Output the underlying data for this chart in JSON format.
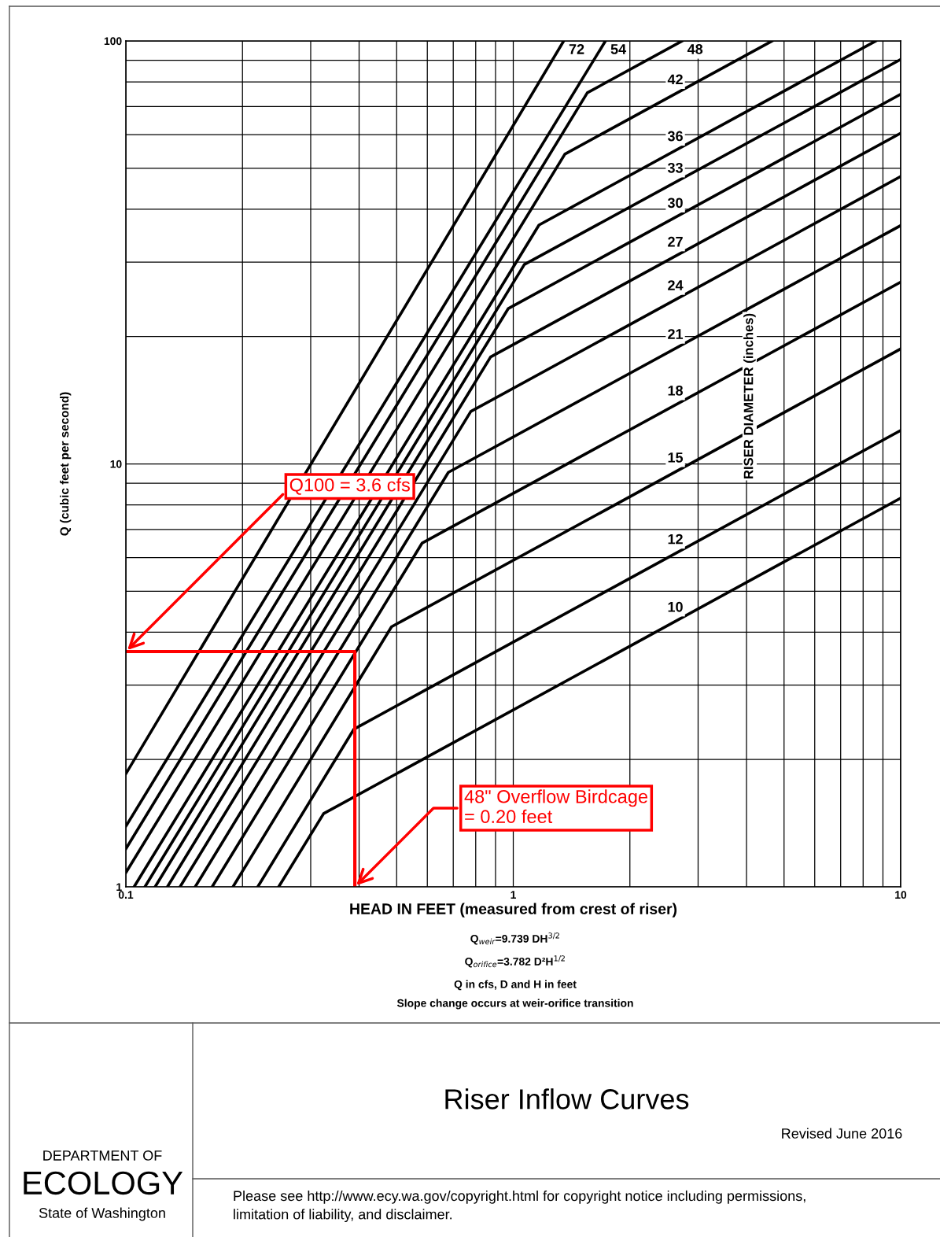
{
  "chart_data": {
    "type": "line",
    "xlabel": "HEAD IN FEET (measured from crest of riser)",
    "ylabel": "Q (cubic feet per second)",
    "legend_title": "RISER DIAMETER (inches)",
    "title": "Riser Inflow Curves",
    "log": "xy",
    "grid": true,
    "legend": false,
    "xlim": [
      0.1,
      10
    ],
    "ylim": [
      1,
      100
    ],
    "xticks": [
      0.1,
      {
        "value": 0.2,
        "label": null
      },
      {
        "value": 0.3,
        "label": null
      },
      {
        "value": 0.4,
        "label": null
      },
      {
        "value": 0.5,
        "label": null
      },
      {
        "value": 0.6,
        "label": null
      },
      {
        "value": 0.7,
        "label": null
      },
      {
        "value": 0.8,
        "label": null
      },
      {
        "value": 0.9,
        "label": null
      },
      1,
      {
        "value": 2,
        "label": null
      },
      {
        "value": 3,
        "label": null
      },
      {
        "value": 4,
        "label": null
      },
      {
        "value": 5,
        "label": null
      },
      {
        "value": 6,
        "label": null
      },
      {
        "value": 7,
        "label": null
      },
      {
        "value": 8,
        "label": null
      },
      {
        "value": 9,
        "label": null
      },
      10
    ],
    "yticks": [
      1,
      {
        "value": 2,
        "label": null
      },
      {
        "value": 3,
        "label": null
      },
      {
        "value": 4,
        "label": null
      },
      {
        "value": 5,
        "label": null
      },
      {
        "value": 6,
        "label": null
      },
      {
        "value": 7,
        "label": null
      },
      {
        "value": 8,
        "label": null
      },
      {
        "value": 9,
        "label": null
      },
      10,
      {
        "value": 20,
        "label": null
      },
      {
        "value": 30,
        "label": null
      },
      {
        "value": 40,
        "label": null
      },
      {
        "value": 50,
        "label": null
      },
      {
        "value": 60,
        "label": null
      },
      {
        "value": 70,
        "label": null
      },
      {
        "value": 80,
        "label": null
      },
      {
        "value": 90,
        "label": null
      },
      100
    ],
    "series": [
      {
        "name": "72",
        "color": "#000000",
        "x": [
          0.1,
          1.35
        ],
        "values": [
          1.85,
          100
        ]
      },
      {
        "name": "54",
        "color": "#000000",
        "x": [
          0.1,
          1.73
        ],
        "values": [
          1.39,
          100
        ]
      },
      {
        "name": "48",
        "color": "#000000",
        "x": [
          0.1,
          1.553,
          2.73
        ],
        "values": [
          1.23,
          75.4,
          100
        ]
      },
      {
        "name": "42",
        "color": "#000000",
        "x": [
          0.1,
          1.359,
          4.66
        ],
        "values": [
          1.08,
          54,
          100
        ]
      },
      {
        "name": "36",
        "color": "#000000",
        "x": [
          0.105,
          1.165,
          8.63
        ],
        "values": [
          1,
          36.7,
          100
        ]
      },
      {
        "name": "33",
        "color": "#000000",
        "x": [
          0.112,
          1.068,
          10
        ],
        "values": [
          1,
          29.6,
          90.4
        ]
      },
      {
        "name": "30",
        "color": "#000000",
        "x": [
          0.119,
          0.971,
          10
        ],
        "values": [
          1,
          23.3,
          74.8
        ]
      },
      {
        "name": "27",
        "color": "#000000",
        "x": [
          0.128,
          0.874,
          10
        ],
        "values": [
          1,
          17.9,
          60.5
        ]
      },
      {
        "name": "24",
        "color": "#000000",
        "x": [
          0.138,
          0.777,
          10
        ],
        "values": [
          1,
          13.3,
          47.8
        ]
      },
      {
        "name": "21",
        "color": "#000000",
        "x": [
          0.151,
          0.68,
          10
        ],
        "values": [
          1,
          9.55,
          36.6
        ]
      },
      {
        "name": "18",
        "color": "#000000",
        "x": [
          0.167,
          0.582,
          10
        ],
        "values": [
          1,
          6.5,
          26.9
        ]
      },
      {
        "name": "15",
        "color": "#000000",
        "x": [
          0.189,
          0.485,
          10
        ],
        "values": [
          1,
          4.12,
          18.7
        ]
      },
      {
        "name": "12",
        "color": "#000000",
        "x": [
          0.219,
          0.388,
          10
        ],
        "values": [
          1,
          2.36,
          12.0
        ]
      },
      {
        "name": "10",
        "color": "#000000",
        "x": [
          0.248,
          0.324,
          10
        ],
        "values": [
          1,
          1.49,
          8.3
        ]
      },
      {
        "color": "#ff0000",
        "x": [
          0.1,
          0.39,
          0.39
        ],
        "values": [
          3.6,
          3.6,
          1
        ]
      }
    ],
    "annotations": [
      {
        "text": "Q100 = 3.6 cfs",
        "x": 0.1,
        "y": 3.6
      },
      {
        "text": "48\" Overflow Birdcage\n= 0.20 feet",
        "x": 0.39,
        "y": 1
      },
      "Q$_{weir}$=9.739 DH$^{3/2}$",
      "Q$_{orifice}$=3.782 D²H$^{1/2}$",
      "Q in cfs, D and H in feet",
      "Slope change occurs at weir-orifice transition",
      "Revised June 2016",
      "DEPARTMENT OF",
      "ECOLOGY",
      "State of Washington",
      "Please see http://www.ecy.wa.gov/copyright.html for copyright notice including permissions,\nlimitation of liability, and disclaimer."
    ]
  }
}
